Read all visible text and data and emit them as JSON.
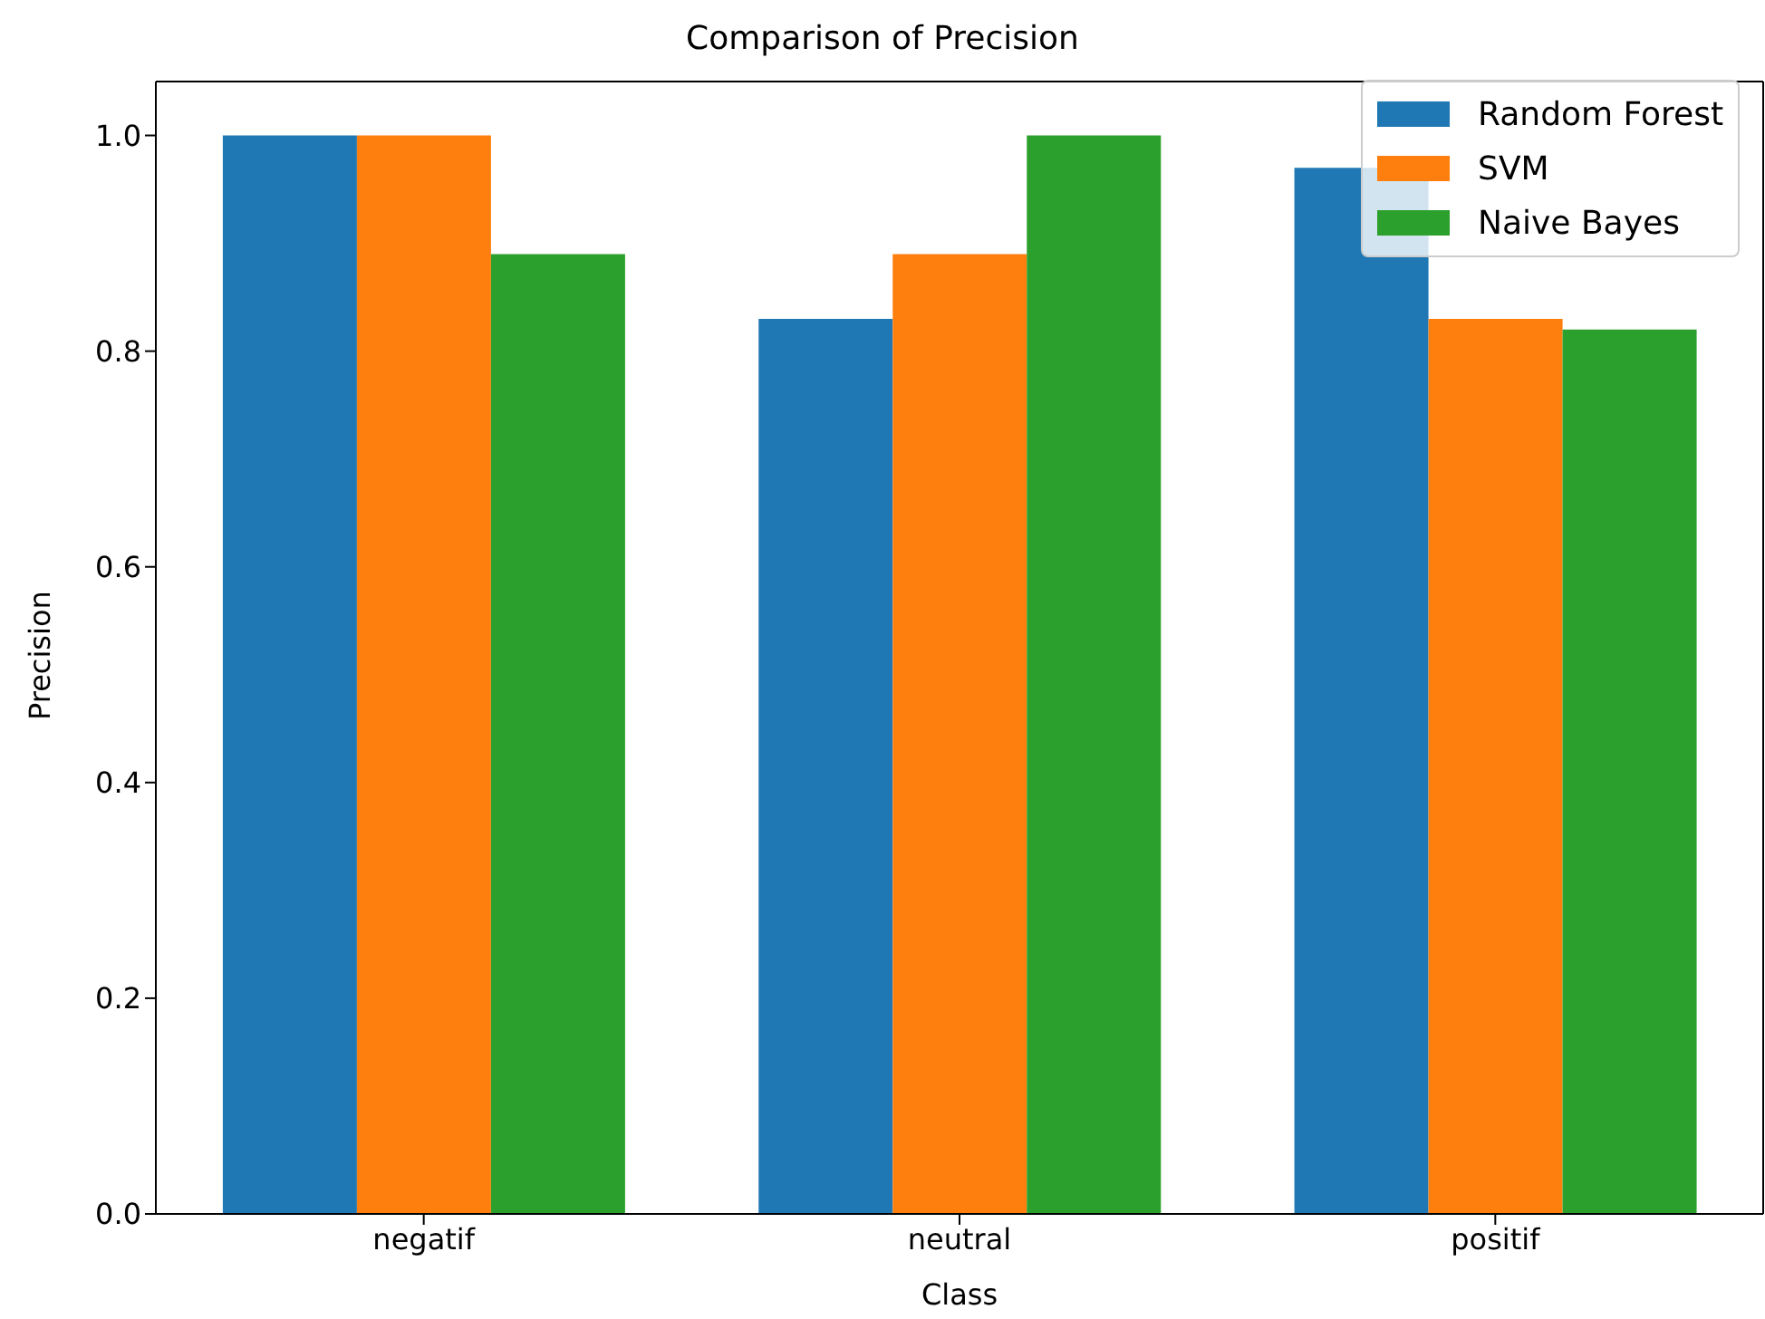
{
  "chart_data": {
    "type": "bar",
    "title": "Comparison of Precision",
    "xlabel": "Class",
    "ylabel": "Precision",
    "categories": [
      "negatif",
      "neutral",
      "positif"
    ],
    "series": [
      {
        "name": "Random Forest",
        "color": "#1f77b4",
        "values": [
          1.0,
          0.83,
          0.97
        ]
      },
      {
        "name": "SVM",
        "color": "#ff7f0e",
        "values": [
          1.0,
          0.89,
          0.83
        ]
      },
      {
        "name": "Naive Bayes",
        "color": "#2ca02c",
        "values": [
          0.89,
          1.0,
          0.82
        ]
      }
    ],
    "ylim": [
      0,
      1.05
    ],
    "yticks": [
      {
        "value": 0,
        "label": "0.0"
      },
      0.2,
      0.4,
      0.6,
      0.8,
      {
        "value": 1,
        "label": "1.0"
      }
    ],
    "grid": false,
    "legend": "top right"
  }
}
